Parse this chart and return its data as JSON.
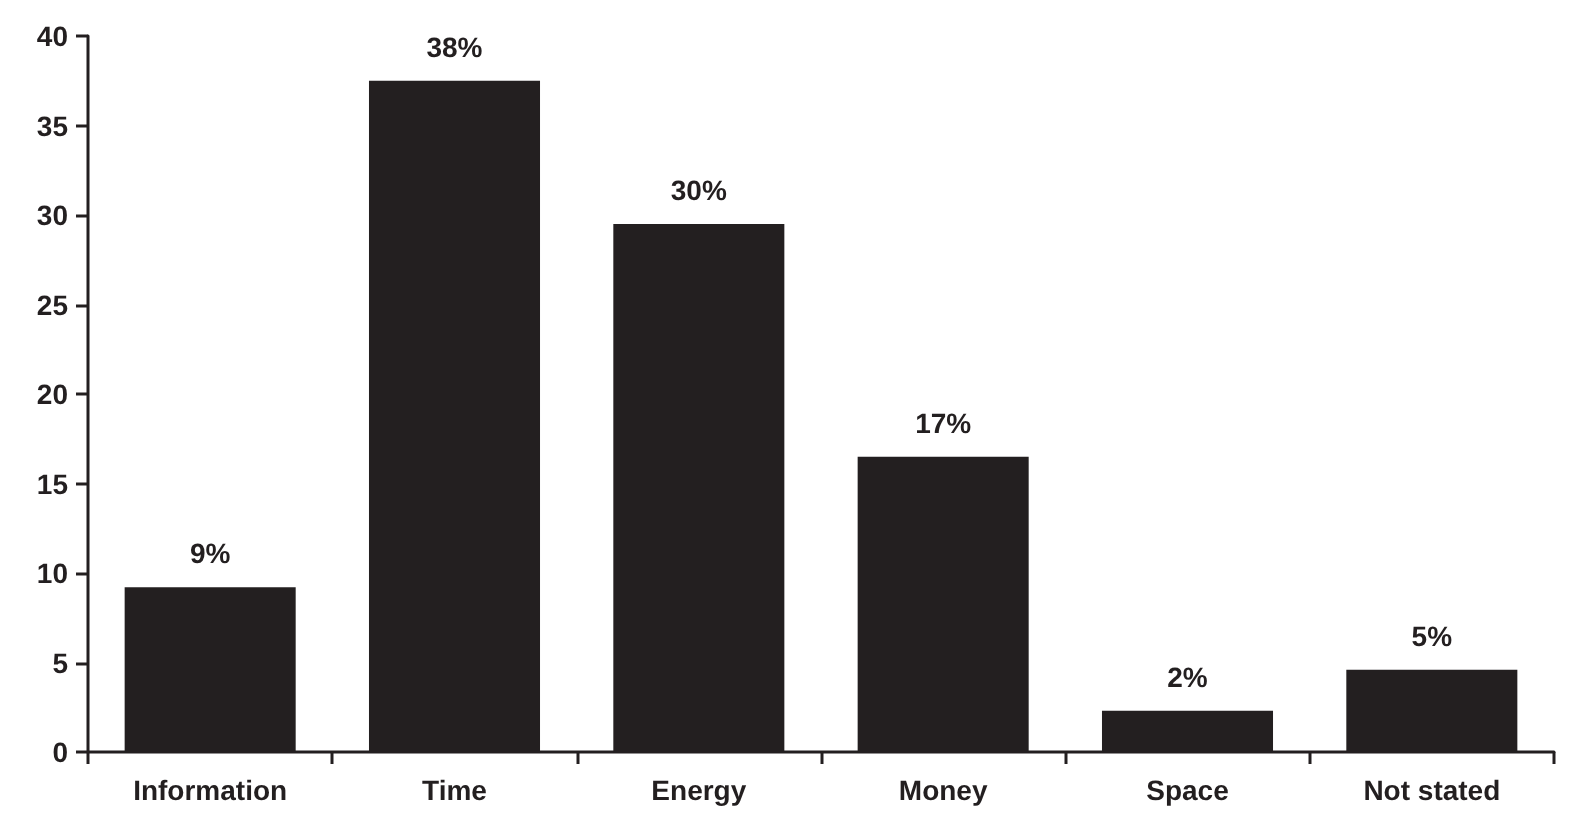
{
  "chart_data": {
    "type": "bar",
    "categories": [
      "Information",
      "Time",
      "Energy",
      "Money",
      "Space",
      "Not stated"
    ],
    "values": [
      9.2,
      37.5,
      29.5,
      16.5,
      2.3,
      4.6
    ],
    "value_labels": [
      "9%",
      "38%",
      "30%",
      "17%",
      "2%",
      "5%"
    ],
    "color": "#231f20",
    "ylim": [
      0,
      40
    ],
    "yticks": [
      0,
      5,
      10,
      15,
      20,
      25,
      30,
      35,
      40
    ],
    "grid": false
  }
}
